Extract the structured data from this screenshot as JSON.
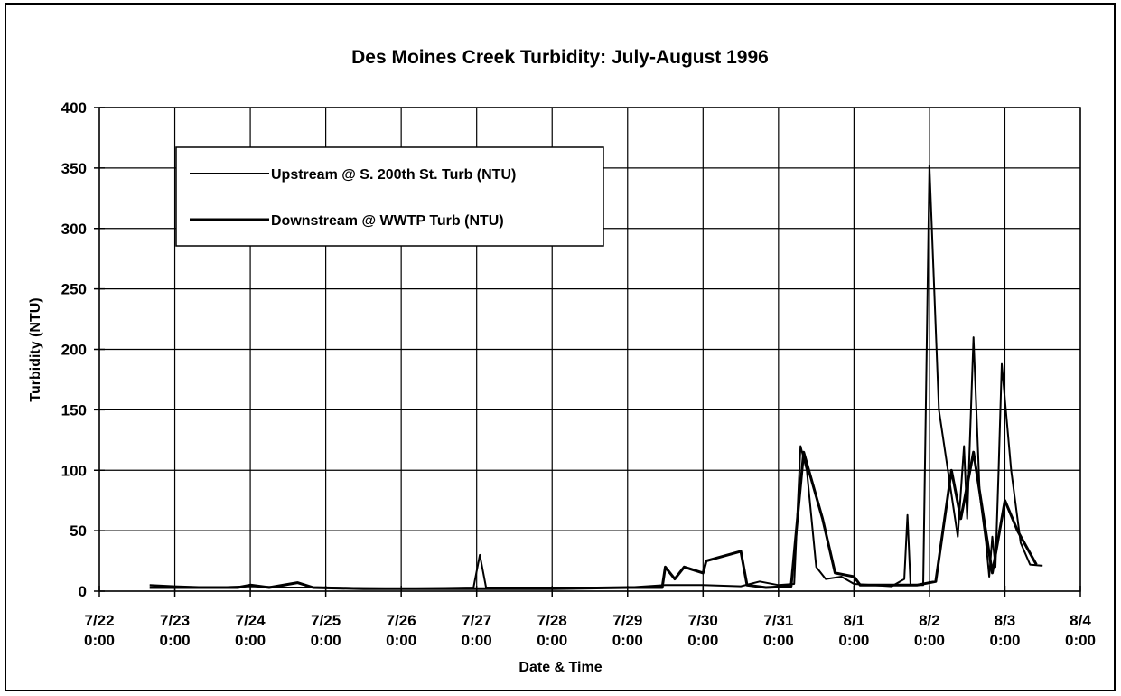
{
  "chart_data": {
    "type": "line",
    "title": "Des Moines Creek Turbidity:  July-August 1996",
    "x_label": "Date & Time",
    "y_label": "Turbidity (NTU)",
    "xlim": [
      "7/22 0:00",
      "8/4 0:00"
    ],
    "xticks": [
      "7/22 0:00",
      "7/23 0:00",
      "7/24 0:00",
      "7/25 0:00",
      "7/26 0:00",
      "7/27 0:00",
      "7/28 0:00",
      "7/29 0:00",
      "7/30 0:00",
      "7/31 0:00",
      "8/1 0:00",
      "8/2 0:00",
      "8/3 0:00",
      "8/4 0:00"
    ],
    "ylim": [
      0,
      400
    ],
    "yticks": [
      0,
      50,
      100,
      150,
      200,
      250,
      300,
      350,
      400
    ],
    "grid": true,
    "legend": "upper-left",
    "series": [
      {
        "name": "Upstream @ S. 200th St. Turb (NTU)",
        "color": "#000000",
        "x": [
          "7/22 16:00",
          "7/23 0:00",
          "7/23 12:00",
          "7/24 0:00",
          "7/24 12:00",
          "7/25 0:00",
          "7/26 0:00",
          "7/26 23:00",
          "7/27 1:00",
          "7/27 3:00",
          "7/28 0:00",
          "7/29 0:00",
          "7/29 12:00",
          "7/30 0:00",
          "7/30 12:00",
          "7/30 18:00",
          "7/31 0:00",
          "7/31 5:00",
          "7/31 7:00",
          "7/31 9:00",
          "7/31 12:00",
          "7/31 15:00",
          "7/31 20:00",
          "8/1 0:00",
          "8/1 12:00",
          "8/1 16:00",
          "8/1 17:00",
          "8/1 18:00",
          "8/1 22:00",
          "8/2 0:00",
          "8/2 3:00",
          "8/2 9:00",
          "8/2 11:00",
          "8/2 12:00",
          "8/2 14:00",
          "8/2 16:00",
          "8/2 18:00",
          "8/2 19:00",
          "8/2 20:00",
          "8/2 21:00",
          "8/2 22:00",
          "8/2 23:00",
          "8/3 2:00",
          "8/3 5:00",
          "8/3 8:00",
          "8/3 12:00"
        ],
        "values": [
          5,
          4,
          3,
          4,
          3,
          3,
          2,
          3,
          30,
          3,
          3,
          3,
          5,
          5,
          4,
          8,
          5,
          6,
          120,
          100,
          20,
          10,
          12,
          6,
          4,
          10,
          63,
          5,
          5,
          352,
          150,
          45,
          120,
          60,
          210,
          80,
          40,
          12,
          45,
          20,
          100,
          188,
          100,
          40,
          22,
          21
        ]
      },
      {
        "name": "Downstream @ WWTP Turb (NTU)",
        "color": "#000000",
        "x": [
          "7/22 16:00",
          "7/23 6:00",
          "7/23 20:00",
          "7/24 0:00",
          "7/24 6:00",
          "7/24 15:00",
          "7/24 20:00",
          "7/25 12:00",
          "7/27 0:00",
          "7/28 0:00",
          "7/29 0:00",
          "7/29 11:00",
          "7/29 12:00",
          "7/29 15:00",
          "7/29 18:00",
          "7/30 0:00",
          "7/30 1:00",
          "7/30 12:00",
          "7/30 14:00",
          "7/30 20:00",
          "7/31 4:00",
          "7/31 8:00",
          "7/31 14:00",
          "7/31 18:00",
          "8/1 0:00",
          "8/1 2:00",
          "8/1 20:00",
          "8/2 2:00",
          "8/2 7:00",
          "8/2 10:00",
          "8/2 14:00",
          "8/2 20:00",
          "8/3 0:00",
          "8/3 4:00",
          "8/3 10:00"
        ],
        "values": [
          3,
          3,
          3,
          5,
          3,
          7,
          3,
          2,
          2,
          2,
          3,
          3,
          20,
          10,
          20,
          15,
          25,
          33,
          5,
          3,
          4,
          115,
          60,
          15,
          12,
          5,
          5,
          8,
          100,
          60,
          115,
          15,
          75,
          50,
          22
        ]
      }
    ]
  }
}
